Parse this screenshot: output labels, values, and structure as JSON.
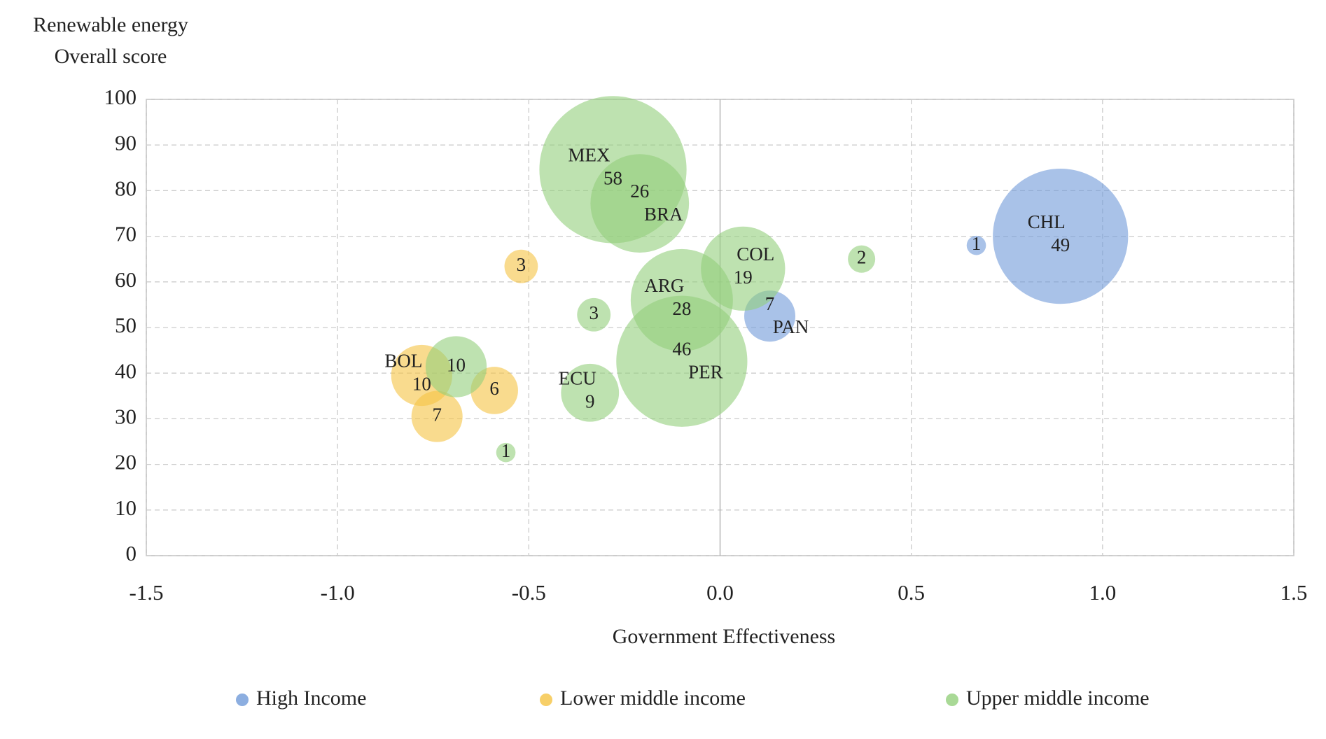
{
  "chart_data": {
    "type": "bubble",
    "ylabel": [
      "Renewable energy",
      "Overall score"
    ],
    "xlabel": "Government Effectiveness",
    "xlim": [
      -1.5,
      1.5
    ],
    "xticks": [
      -1.5,
      {
        "value": -1.0,
        "label": "-1.0"
      },
      -0.5,
      {
        "value": 0.0,
        "label": "0.0"
      },
      0.5,
      {
        "value": 1.0,
        "label": "1.0"
      },
      1.5
    ],
    "ylim": [
      0,
      100
    ],
    "yticks": [
      0,
      10,
      20,
      30,
      40,
      50,
      60,
      70,
      80,
      90,
      100
    ],
    "grid": true,
    "legend": "bottom",
    "series": [
      {
        "name": "High Income",
        "color": "#6f9ad8",
        "x": [
          0.67,
          0.89,
          0.13
        ],
        "y": [
          68,
          70,
          52.5
        ],
        "sizes": [
          1,
          49,
          7
        ],
        "labels": [
          null,
          "CHL",
          "PAN"
        ]
      },
      {
        "name": "Lower middle income",
        "color": "#f5c342",
        "x": [
          -0.52,
          -0.78,
          -0.59,
          -0.74
        ],
        "y": [
          63.4,
          39.5,
          36.2,
          30.5
        ],
        "sizes": [
          3,
          10,
          6,
          7
        ],
        "labels": [
          null,
          "BOL",
          null,
          null
        ]
      },
      {
        "name": "Upper middle income",
        "color": "#93cf7c",
        "x": [
          -0.28,
          -0.21,
          0.06,
          0.37,
          -0.1,
          -0.33,
          -0.1,
          -0.69,
          -0.34,
          -0.56
        ],
        "y": [
          84.6,
          77.2,
          62.9,
          65,
          56,
          52.8,
          42.6,
          41.4,
          35.7,
          22.6
        ],
        "sizes": [
          58,
          26,
          19,
          2,
          28,
          3,
          46,
          10,
          9,
          1
        ],
        "labels": [
          "MEX",
          "BRA",
          "COL",
          null,
          "ARG",
          null,
          "PER",
          null,
          "ECU",
          null
        ]
      }
    ]
  }
}
